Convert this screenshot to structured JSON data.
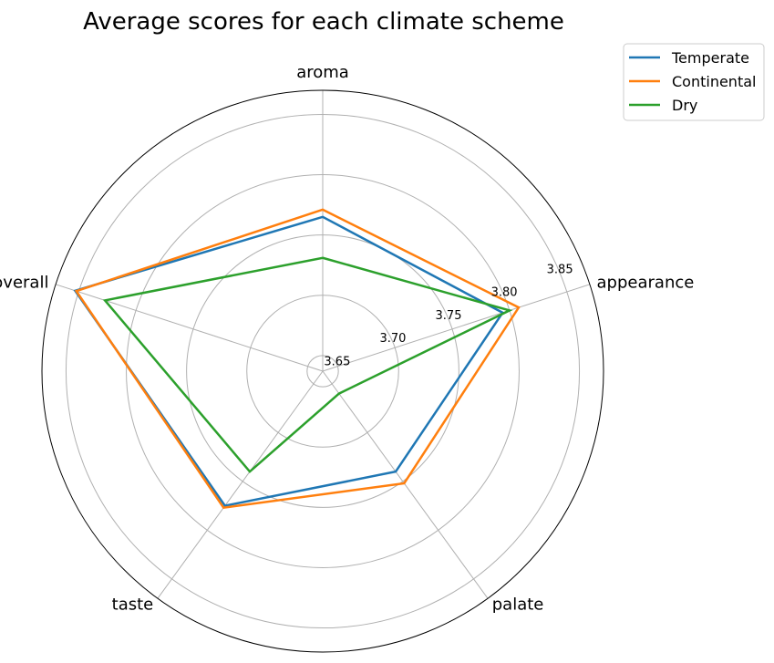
{
  "chart_data": {
    "type": "radar",
    "title": "Average scores for each climate scheme",
    "categories": [
      "aroma",
      "appearance",
      "palate",
      "taste",
      "overall"
    ],
    "radial_ticks": [
      "3.65",
      "3.70",
      "3.75",
      "3.80",
      "3.85"
    ],
    "rlim": [
      3.637,
      3.87
    ],
    "grid": true,
    "legend_position": "top-right",
    "series": [
      {
        "name": "Temperate",
        "color": "#1f77b4",
        "values": [
          3.765,
          3.794,
          3.74,
          3.775,
          3.853
        ]
      },
      {
        "name": "Continental",
        "color": "#ff7f0e",
        "values": [
          3.771,
          3.808,
          3.752,
          3.777,
          3.852
        ]
      },
      {
        "name": "Dry",
        "color": "#2ca02c",
        "values": [
          3.731,
          3.8,
          3.66,
          3.74,
          3.827
        ]
      }
    ]
  }
}
